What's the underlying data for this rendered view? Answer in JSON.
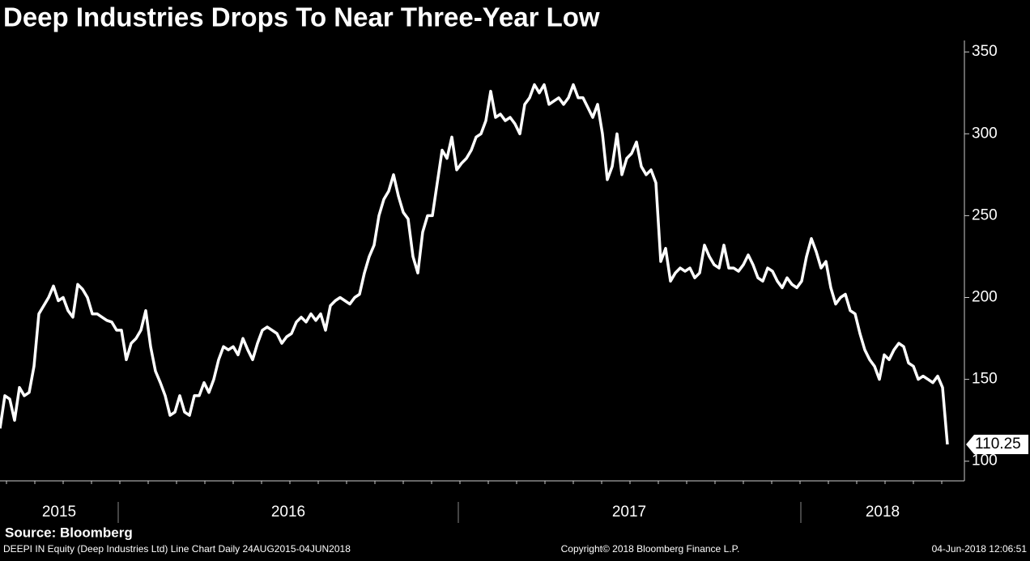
{
  "chart_data": {
    "type": "line",
    "title": "Deep Industries Drops To Near Three-Year Low",
    "values": [
      120,
      140,
      138,
      125,
      145,
      140,
      142,
      158,
      190,
      195,
      200,
      207,
      198,
      200,
      192,
      188,
      208,
      205,
      200,
      190,
      190,
      188,
      186,
      185,
      180,
      180,
      162,
      172,
      175,
      180,
      192,
      170,
      155,
      148,
      140,
      128,
      130,
      140,
      130,
      128,
      140,
      140,
      148,
      142,
      150,
      162,
      170,
      168,
      170,
      165,
      175,
      168,
      162,
      172,
      180,
      182,
      180,
      178,
      172,
      176,
      178,
      185,
      188,
      185,
      190,
      186,
      190,
      180,
      195,
      198,
      200,
      198,
      196,
      200,
      202,
      215,
      225,
      232,
      250,
      260,
      265,
      275,
      262,
      252,
      248,
      225,
      215,
      240,
      250,
      250,
      270,
      290,
      285,
      298,
      278,
      282,
      285,
      290,
      298,
      300,
      308,
      326,
      310,
      312,
      308,
      310,
      306,
      300,
      318,
      322,
      330,
      325,
      330,
      318,
      320,
      322,
      318,
      322,
      330,
      322,
      322,
      316,
      310,
      318,
      300,
      272,
      280,
      300,
      275,
      285,
      288,
      295,
      280,
      275,
      278,
      270,
      222,
      230,
      210,
      215,
      218,
      216,
      218,
      212,
      215,
      232,
      225,
      220,
      218,
      232,
      218,
      218,
      216,
      220,
      226,
      220,
      212,
      210,
      218,
      216,
      210,
      206,
      212,
      208,
      206,
      210,
      225,
      236,
      228,
      218,
      222,
      206,
      196,
      200,
      202,
      192,
      190,
      178,
      168,
      162,
      158,
      150,
      165,
      162,
      168,
      172,
      170,
      160,
      158,
      150,
      152,
      150,
      148,
      152,
      145,
      110.25
    ],
    "color": "#ffffff",
    "ylim": [
      88,
      357
    ],
    "yticks": [
      100,
      150,
      200,
      250,
      300,
      350
    ],
    "year_labels": [
      "2015",
      "2016",
      "2017",
      "2018"
    ],
    "source": "Source: Bloomberg",
    "footer_left": "DEEPI IN Equity (Deep Industries Ltd) Line Chart  Daily 24AUG2015-04JUN2018",
    "footer_center": "Copyright© 2018 Bloomberg Finance L.P.",
    "footer_right": "04-Jun-2018 12:06:51"
  }
}
